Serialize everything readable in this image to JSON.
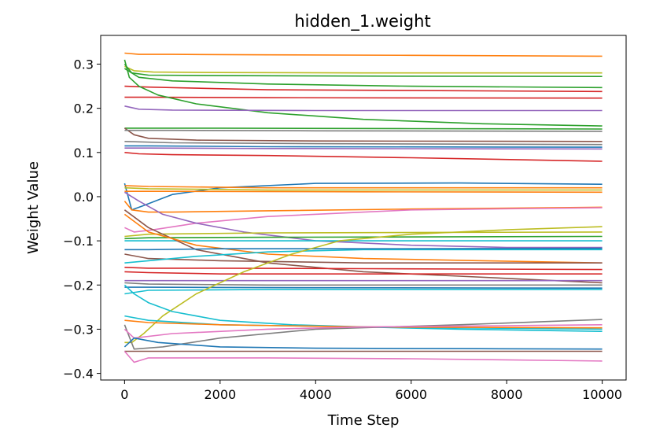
{
  "chart_data": {
    "type": "line",
    "title": "hidden_1.weight",
    "xlabel": "Time Step",
    "ylabel": "Weight Value",
    "xlim": [
      -500,
      10500
    ],
    "ylim": [
      -0.415,
      0.365
    ],
    "xticks": [
      0,
      2000,
      4000,
      6000,
      8000,
      10000
    ],
    "xtick_labels": [
      "0",
      "2000",
      "4000",
      "6000",
      "8000",
      "10000"
    ],
    "yticks": [
      0.3,
      0.2,
      0.1,
      0.0,
      -0.1,
      -0.2,
      -0.3,
      -0.4
    ],
    "ytick_labels": [
      "0.3",
      "0.2",
      "0.1",
      "0.0",
      "−0.1",
      "−0.2",
      "−0.3",
      "−0.4"
    ],
    "grid": false,
    "legend": "none",
    "series": [
      {
        "color": "#ff7f0e",
        "x": [
          0,
          300,
          1000,
          3000,
          6000,
          10000
        ],
        "y": [
          0.325,
          0.322,
          0.322,
          0.321,
          0.32,
          0.318
        ]
      },
      {
        "color": "#bcbd22",
        "x": [
          0,
          200,
          600,
          2000,
          5000,
          10000
        ],
        "y": [
          0.295,
          0.285,
          0.282,
          0.281,
          0.28,
          0.28
        ]
      },
      {
        "color": "#2ca02c",
        "x": [
          0,
          150,
          500,
          2000,
          5000,
          10000
        ],
        "y": [
          0.3,
          0.28,
          0.275,
          0.274,
          0.273,
          0.272
        ]
      },
      {
        "color": "#2ca02c",
        "x": [
          0,
          300,
          1000,
          3000,
          6000,
          10000
        ],
        "y": [
          0.29,
          0.27,
          0.262,
          0.255,
          0.25,
          0.247
        ]
      },
      {
        "color": "#d62728",
        "x": [
          0,
          500,
          3000,
          10000
        ],
        "y": [
          0.25,
          0.248,
          0.242,
          0.238
        ]
      },
      {
        "color": "#d62728",
        "x": [
          0,
          500,
          3000,
          10000
        ],
        "y": [
          0.225,
          0.225,
          0.224,
          0.223
        ]
      },
      {
        "color": "#2ca02c",
        "x": [
          0,
          100,
          300,
          700,
          1500,
          3000,
          5000,
          7500,
          10000
        ],
        "y": [
          0.31,
          0.27,
          0.25,
          0.23,
          0.21,
          0.19,
          0.175,
          0.165,
          0.16
        ]
      },
      {
        "color": "#9467bd",
        "x": [
          0,
          300,
          1000,
          4000,
          10000
        ],
        "y": [
          0.205,
          0.198,
          0.196,
          0.195,
          0.195
        ]
      },
      {
        "color": "#2ca02c",
        "x": [
          0,
          2000,
          6000,
          10000
        ],
        "y": [
          0.155,
          0.155,
          0.154,
          0.153
        ]
      },
      {
        "color": "#8c564b",
        "x": [
          0,
          200,
          500,
          1500,
          4000,
          10000
        ],
        "y": [
          0.155,
          0.14,
          0.132,
          0.128,
          0.126,
          0.125
        ]
      },
      {
        "color": "#7f7f7f",
        "x": [
          0,
          300,
          1000,
          4000,
          10000
        ],
        "y": [
          0.15,
          0.15,
          0.15,
          0.149,
          0.148
        ]
      },
      {
        "color": "#7f7f7f",
        "x": [
          0,
          300,
          1000,
          4000,
          10000
        ],
        "y": [
          0.125,
          0.124,
          0.122,
          0.12,
          0.118
        ]
      },
      {
        "color": "#1f77b4",
        "x": [
          0,
          500,
          3000,
          10000
        ],
        "y": [
          0.115,
          0.115,
          0.113,
          0.112
        ]
      },
      {
        "color": "#9467bd",
        "x": [
          0,
          500,
          3000,
          10000
        ],
        "y": [
          0.11,
          0.11,
          0.109,
          0.108
        ]
      },
      {
        "color": "#d62728",
        "x": [
          0,
          300,
          1000,
          3000,
          6000,
          10000
        ],
        "y": [
          0.1,
          0.097,
          0.095,
          0.093,
          0.088,
          0.08
        ]
      },
      {
        "color": "#1f77b4",
        "x": [
          0,
          150,
          400,
          1000,
          2000,
          4000,
          7000,
          10000
        ],
        "y": [
          0.03,
          -0.03,
          -0.02,
          0.005,
          0.02,
          0.03,
          0.031,
          0.028
        ]
      },
      {
        "color": "#ff7f0e",
        "x": [
          0,
          500,
          3000,
          10000
        ],
        "y": [
          0.025,
          0.023,
          0.02,
          0.02
        ]
      },
      {
        "color": "#bcbd22",
        "x": [
          0,
          500,
          3000,
          10000
        ],
        "y": [
          0.02,
          0.018,
          0.015,
          0.015
        ]
      },
      {
        "color": "#ff7f0e",
        "x": [
          0,
          1000,
          5000,
          10000
        ],
        "y": [
          0.012,
          0.012,
          0.011,
          0.01
        ]
      },
      {
        "color": "#ff7f0e",
        "x": [
          0,
          150,
          500,
          1000,
          3000,
          6000,
          10000
        ],
        "y": [
          -0.01,
          -0.03,
          -0.035,
          -0.035,
          -0.032,
          -0.028,
          -0.024
        ]
      },
      {
        "color": "#e377c2",
        "x": [
          0,
          200,
          600,
          1500,
          3000,
          6000,
          10000
        ],
        "y": [
          -0.07,
          -0.08,
          -0.075,
          -0.06,
          -0.045,
          -0.03,
          -0.025
        ]
      },
      {
        "color": "#9467bd",
        "x": [
          0,
          300,
          800,
          1500,
          2500,
          4000,
          6000,
          8000,
          10000
        ],
        "y": [
          0.01,
          -0.01,
          -0.04,
          -0.06,
          -0.08,
          -0.1,
          -0.11,
          -0.115,
          -0.115
        ]
      },
      {
        "color": "#bcbd22",
        "x": [
          0,
          500,
          3000,
          10000
        ],
        "y": [
          -0.09,
          -0.085,
          -0.082,
          -0.08
        ]
      },
      {
        "color": "#2ca02c",
        "x": [
          0,
          500,
          3000,
          10000
        ],
        "y": [
          -0.095,
          -0.093,
          -0.092,
          -0.09
        ]
      },
      {
        "color": "#17becf",
        "x": [
          0,
          500,
          3000,
          10000
        ],
        "y": [
          -0.1,
          -0.1,
          -0.1,
          -0.1
        ]
      },
      {
        "color": "#8c564b",
        "x": [
          0,
          500,
          1500,
          3000,
          5000,
          7000,
          9000,
          10000
        ],
        "y": [
          -0.03,
          -0.07,
          -0.12,
          -0.15,
          -0.17,
          -0.18,
          -0.19,
          -0.195
        ]
      },
      {
        "color": "#ff7f0e",
        "x": [
          0,
          500,
          1500,
          3000,
          5000,
          7500,
          10000
        ],
        "y": [
          -0.04,
          -0.08,
          -0.11,
          -0.13,
          -0.14,
          -0.145,
          -0.15
        ]
      },
      {
        "color": "#8c564b",
        "x": [
          0,
          500,
          2000,
          5000,
          10000
        ],
        "y": [
          -0.13,
          -0.14,
          -0.145,
          -0.15,
          -0.15
        ]
      },
      {
        "color": "#17becf",
        "x": [
          0,
          500,
          1500,
          3000,
          5000,
          10000
        ],
        "y": [
          -0.15,
          -0.145,
          -0.135,
          -0.125,
          -0.12,
          -0.12
        ]
      },
      {
        "color": "#1f77b4",
        "x": [
          0,
          500,
          2000,
          5000,
          10000
        ],
        "y": [
          -0.12,
          -0.12,
          -0.118,
          -0.118,
          -0.117
        ]
      },
      {
        "color": "#d62728",
        "x": [
          0,
          500,
          2000,
          5000,
          10000
        ],
        "y": [
          -0.16,
          -0.162,
          -0.162,
          -0.163,
          -0.165
        ]
      },
      {
        "color": "#d62728",
        "x": [
          0,
          500,
          2000,
          5000,
          10000
        ],
        "y": [
          -0.17,
          -0.172,
          -0.175,
          -0.175,
          -0.175
        ]
      },
      {
        "color": "#9467bd",
        "x": [
          0,
          500,
          3000,
          10000
        ],
        "y": [
          -0.19,
          -0.19,
          -0.19,
          -0.19
        ]
      },
      {
        "color": "#7f7f7f",
        "x": [
          0,
          500,
          3000,
          10000
        ],
        "y": [
          -0.195,
          -0.198,
          -0.2,
          -0.2
        ]
      },
      {
        "color": "#1f77b4",
        "x": [
          0,
          500,
          3000,
          10000
        ],
        "y": [
          -0.205,
          -0.205,
          -0.206,
          -0.207
        ]
      },
      {
        "color": "#17becf",
        "x": [
          0,
          500,
          3000,
          10000
        ],
        "y": [
          -0.22,
          -0.212,
          -0.21,
          -0.21
        ]
      },
      {
        "color": "#bcbd22",
        "x": [
          0,
          150,
          400,
          800,
          1500,
          2500,
          3500,
          4500,
          6000,
          8000,
          10000
        ],
        "y": [
          -0.33,
          -0.33,
          -0.31,
          -0.27,
          -0.22,
          -0.17,
          -0.13,
          -0.1,
          -0.085,
          -0.075,
          -0.068
        ]
      },
      {
        "color": "#17becf",
        "x": [
          0,
          200,
          500,
          1000,
          2000,
          3500,
          5000,
          7000,
          10000
        ],
        "y": [
          -0.2,
          -0.22,
          -0.24,
          -0.26,
          -0.28,
          -0.29,
          -0.295,
          -0.3,
          -0.305
        ]
      },
      {
        "color": "#17becf",
        "x": [
          0,
          500,
          2000,
          5000,
          10000
        ],
        "y": [
          -0.27,
          -0.28,
          -0.29,
          -0.295,
          -0.3
        ]
      },
      {
        "color": "#ff7f0e",
        "x": [
          0,
          500,
          2000,
          5000,
          10000
        ],
        "y": [
          -0.28,
          -0.285,
          -0.29,
          -0.295,
          -0.297
        ]
      },
      {
        "color": "#7f7f7f",
        "x": [
          0,
          200,
          800,
          2000,
          4000,
          7000,
          10000
        ],
        "y": [
          -0.29,
          -0.345,
          -0.34,
          -0.32,
          -0.3,
          -0.29,
          -0.278
        ]
      },
      {
        "color": "#e377c2",
        "x": [
          0,
          200,
          1000,
          3000,
          5000,
          10000
        ],
        "y": [
          -0.3,
          -0.32,
          -0.31,
          -0.3,
          -0.295,
          -0.29
        ]
      },
      {
        "color": "#1f77b4",
        "x": [
          0,
          200,
          700,
          2000,
          4000,
          7000,
          10000
        ],
        "y": [
          -0.34,
          -0.32,
          -0.33,
          -0.34,
          -0.343,
          -0.344,
          -0.345
        ]
      },
      {
        "color": "#8c564b",
        "x": [
          0,
          500,
          3000,
          10000
        ],
        "y": [
          -0.35,
          -0.35,
          -0.35,
          -0.35
        ]
      },
      {
        "color": "#e377c2",
        "x": [
          0,
          200,
          500,
          1000,
          3000,
          6000,
          10000
        ],
        "y": [
          -0.35,
          -0.375,
          -0.365,
          -0.365,
          -0.365,
          -0.367,
          -0.372
        ]
      }
    ]
  }
}
